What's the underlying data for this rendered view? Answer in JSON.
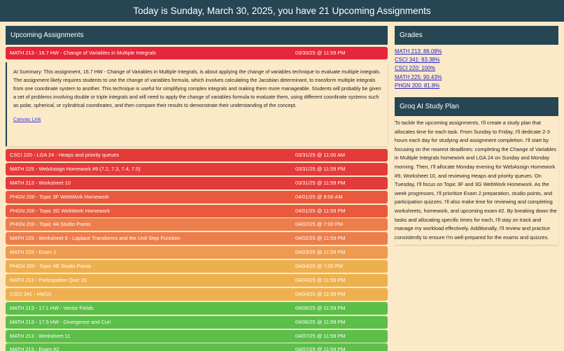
{
  "header": {
    "title": "Today is Sunday, March 30, 2025, you have 21 Upcoming Assignments"
  },
  "upcoming": {
    "title": "Upcoming Assignments",
    "first": {
      "name": "MATH 213 - 16.7 HW - Change of Variables in Multiple Integrals",
      "due": "03/30/25 @ 11:59 PM",
      "color": "#e5263b"
    },
    "summary": {
      "text": "AI Summary: This assignment, 16.7 HW - Change of Variables in Multiple Integrals, is about applying the change of variables technique to evaluate multiple integrals. The assignment likely requires students to use the change of variables formula, which involves calculating the Jacobian determinant, to transform multiple integrals from one coordinate system to another. This technique is useful for simplifying complex integrals and making them more manageable. Students will probably be given a set of problems involving double or triple integrals and will need to apply the change of variables formula to evaluate them, using different coordinate systems such as polar, spherical, or cylindrical coordinates, and then compare their results to demonstrate their understanding of the concept.",
      "link": "Canvas Link"
    },
    "items": [
      {
        "name": "CSCI 220 - LGA 24 - Heaps and priority queues",
        "due": "03/31/25 @ 11:00 AM",
        "color": "#e53a3a"
      },
      {
        "name": "MATH 225 - WebAssign Homework #9 (7.2, 7.3, 7.4, 7.5)",
        "due": "03/31/25 @ 11:59 PM",
        "color": "#e53a3a"
      },
      {
        "name": "MATH 213 - Worksheet 10",
        "due": "03/31/25 @ 11:59 PM",
        "color": "#e53a3a"
      },
      {
        "name": "PHGN 200 - Topic 3F WebWork Homework",
        "due": "04/01/25 @ 8:00 AM",
        "color": "#e8593e"
      },
      {
        "name": "PHGN 200 - Topic 3G WebWork Homework",
        "due": "04/01/25 @ 11:59 PM",
        "color": "#e8593e"
      },
      {
        "name": "PHGN 200 - Topic 4A Studio Points",
        "due": "04/02/25 @ 7:00 PM",
        "color": "#ec7e4c"
      },
      {
        "name": "MATH 225 - Worksheet 9 - Laplace Transforms and the Unit Step Function",
        "due": "04/02/25 @ 11:59 PM",
        "color": "#ec7e4c"
      },
      {
        "name": "MATH 225 - Exam 2",
        "due": "04/03/25 @ 11:59 PM",
        "color": "#ee9a4f"
      },
      {
        "name": "PHGN 200 - Topic 4B Studio Points",
        "due": "04/04/25 @ 7:00 PM",
        "color": "#eeb04f"
      },
      {
        "name": "MATH 213 - Participation Quiz 15",
        "due": "04/04/25 @ 11:59 PM",
        "color": "#eeb04f"
      },
      {
        "name": "CSCI 341 - HW10",
        "due": "04/04/25 @ 11:59 PM",
        "color": "#eeb04f"
      },
      {
        "name": "MATH 213 - 17.1 HW - Vector Fields",
        "due": "04/06/25 @ 11:59 PM",
        "color": "#5cbf4a"
      },
      {
        "name": "MATH 213 - 17.5 HW - Divergence and Curl",
        "due": "04/06/25 @ 11:59 PM",
        "color": "#5cbf4a"
      },
      {
        "name": "MATH 213 - Worksheet 11",
        "due": "04/07/25 @ 11:59 PM",
        "color": "#5cbf4a"
      },
      {
        "name": "MATH 213 - Exam #2",
        "due": "04/07/25 @ 11:59 PM",
        "color": "#5cbf4a"
      }
    ]
  },
  "grades": {
    "title": "Grades",
    "items": [
      "MATH 213: 86.08%",
      "CSCI 341: 83.38%",
      "CSCI 220: 100%",
      "MATH 225: 90.43%",
      "PHGN 200: 81.8%"
    ]
  },
  "study": {
    "title": "Groq AI Study Plan",
    "text": "To tackle the upcoming assignments, I'll create a study plan that allocates time for each task. From Sunday to Friday, I'll dedicate 2-3 hours each day for studying and assignment completion. I'll start by focusing on the nearest deadlines: completing the Change of Variables in Multiple Integrals homework and LGA 24 on Sunday and Monday morning. Then, I'll allocate Monday evening for WebAssign Homework #9, Worksheet 10, and reviewing Heaps and priority queues. On Tuesday, I'll focus on Topic 3F and 3G WebWork Homework. As the week progresses, I'll prioritize Exam 2 preparation, studio points, and participation quizzes. I'll also make time for reviewing and completing worksheets, homework, and upcoming exam #2. By breaking down the tasks and allocating specific times for each, I'll stay on track and manage my workload effectively. Additionally, I'll review and practice consistently to ensure I'm well-prepared for the exams and quizzes."
  }
}
